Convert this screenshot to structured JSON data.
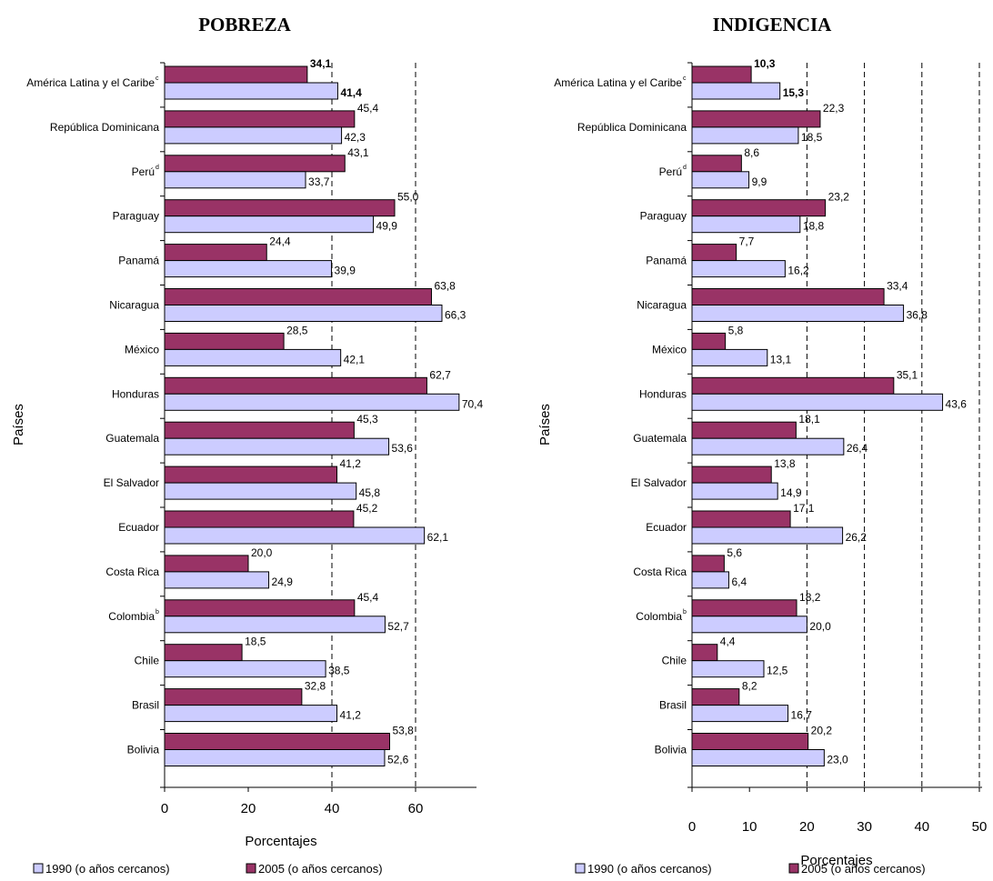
{
  "chart_data": [
    {
      "type": "bar",
      "orientation": "horizontal",
      "title": "POBREZA",
      "xlabel": "Porcentajes",
      "ylabel": "Países",
      "xlim": [
        0,
        75
      ],
      "xticks": [
        "0",
        "20",
        "40",
        "60"
      ],
      "xtick_values": [
        0,
        20,
        40,
        60
      ],
      "gridlines": [
        40,
        60
      ],
      "categories": [
        {
          "name": "América Latina y el Caribe",
          "sup": "c"
        },
        {
          "name": "República Dominicana",
          "sup": ""
        },
        {
          "name": "Perú",
          "sup": "d"
        },
        {
          "name": "Paraguay",
          "sup": ""
        },
        {
          "name": "Panamá",
          "sup": ""
        },
        {
          "name": "Nicaragua",
          "sup": ""
        },
        {
          "name": "México",
          "sup": ""
        },
        {
          "name": "Honduras",
          "sup": ""
        },
        {
          "name": "Guatemala",
          "sup": ""
        },
        {
          "name": "El Salvador",
          "sup": ""
        },
        {
          "name": "Ecuador",
          "sup": ""
        },
        {
          "name": "Costa Rica",
          "sup": ""
        },
        {
          "name": "Colombia",
          "sup": "b"
        },
        {
          "name": "Chile",
          "sup": ""
        },
        {
          "name": "Brasil",
          "sup": ""
        },
        {
          "name": "Bolivia",
          "sup": ""
        }
      ],
      "series": [
        {
          "name": "2005 (o años cercanos)",
          "color": "#993366",
          "values": [
            34.1,
            45.4,
            43.1,
            55.0,
            24.4,
            63.8,
            28.5,
            62.7,
            45.3,
            41.2,
            45.2,
            20.0,
            45.4,
            18.5,
            32.8,
            53.8
          ],
          "labels": [
            "34,1",
            "45,4",
            "43,1",
            "55,0",
            "24,4",
            "63,8",
            "28,5",
            "62,7",
            "45,3",
            "41,2",
            "45,2",
            "20,0",
            "45,4",
            "18,5",
            "32,8",
            "53,8"
          ]
        },
        {
          "name": "1990 (o años cercanos)",
          "color": "#ccccff",
          "values": [
            41.4,
            42.3,
            33.7,
            49.9,
            39.9,
            66.3,
            42.1,
            70.4,
            53.6,
            45.8,
            62.1,
            24.9,
            52.7,
            38.5,
            41.2,
            52.6
          ],
          "labels": [
            "41,4",
            "42,3",
            "33,7",
            "49,9",
            "39,9",
            "66,3",
            "42,1",
            "70,4",
            "53,6",
            "45,8",
            "62,1",
            "24,9",
            "52,7",
            "38,5",
            "41,2",
            "52,6"
          ]
        }
      ],
      "legend": [
        "1990 (o años cercanos)",
        "2005 (o años cercanos)"
      ]
    },
    {
      "type": "bar",
      "orientation": "horizontal",
      "title": "INDIGENCIA",
      "xlabel": "Porcentajes",
      "ylabel": "Países",
      "xlim": [
        0,
        50
      ],
      "xticks": [
        "0",
        "10",
        "20",
        "30",
        "40",
        "50"
      ],
      "xtick_values": [
        0,
        10,
        20,
        30,
        40,
        50
      ],
      "gridlines": [
        20,
        30,
        40,
        50
      ],
      "categories": [
        {
          "name": "América Latina y el Caribe",
          "sup": "c"
        },
        {
          "name": "República Dominicana",
          "sup": ""
        },
        {
          "name": "Perú",
          "sup": "d"
        },
        {
          "name": "Paraguay",
          "sup": ""
        },
        {
          "name": "Panamá",
          "sup": ""
        },
        {
          "name": "Nicaragua",
          "sup": ""
        },
        {
          "name": "México",
          "sup": ""
        },
        {
          "name": "Honduras",
          "sup": ""
        },
        {
          "name": "Guatemala",
          "sup": ""
        },
        {
          "name": "El Salvador",
          "sup": ""
        },
        {
          "name": "Ecuador",
          "sup": ""
        },
        {
          "name": "Costa Rica",
          "sup": ""
        },
        {
          "name": "Colombia",
          "sup": "b"
        },
        {
          "name": "Chile",
          "sup": ""
        },
        {
          "name": "Brasil",
          "sup": ""
        },
        {
          "name": "Bolivia",
          "sup": ""
        }
      ],
      "series": [
        {
          "name": "2005 (o años cercanos)",
          "color": "#993366",
          "values": [
            10.3,
            22.3,
            8.6,
            23.2,
            7.7,
            33.4,
            5.8,
            35.1,
            18.1,
            13.8,
            17.1,
            5.6,
            18.2,
            4.4,
            8.2,
            20.2
          ],
          "labels": [
            "10,3",
            "22,3",
            "8,6",
            "23,2",
            "7,7",
            "33,4",
            "5,8",
            "35,1",
            "18,1",
            "13,8",
            "17,1",
            "5,6",
            "18,2",
            "4,4",
            "8,2",
            "20,2"
          ]
        },
        {
          "name": "1990 (o años cercanos)",
          "color": "#ccccff",
          "values": [
            15.3,
            18.5,
            9.9,
            18.8,
            16.2,
            36.8,
            13.1,
            43.6,
            26.4,
            14.9,
            26.2,
            6.4,
            20.0,
            12.5,
            16.7,
            23.0
          ],
          "labels": [
            "15,3",
            "18,5",
            "9,9",
            "18,8",
            "16,2",
            "36,8",
            "13,1",
            "43,6",
            "26,4",
            "14,9",
            "26,2",
            "6,4",
            "20,0",
            "12,5",
            "16,7",
            "23,0"
          ]
        }
      ],
      "legend": [
        "1990 (o años cercanos)",
        "2005 (o años cercanos)"
      ]
    }
  ]
}
